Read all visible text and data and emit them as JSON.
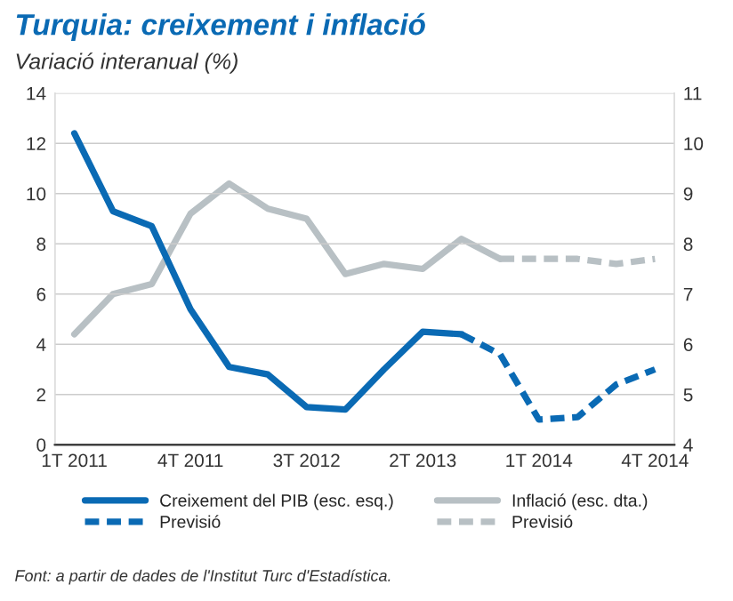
{
  "chart_data": {
    "type": "line",
    "title": "Turquia: creixement i inflació",
    "subtitle": "Variació interanual (%)",
    "categories": [
      "1T 2011",
      null,
      null,
      "4T 2011",
      null,
      null,
      "3T 2012",
      null,
      null,
      "2T 2013",
      null,
      null,
      "1T 2014",
      null,
      null,
      "4T 2014"
    ],
    "series": [
      {
        "name": "Creixement del PIB (esc. esq.)",
        "color": "#0a6ab4",
        "line_style": "solid",
        "values": [
          12.4,
          9.3,
          8.7,
          5.4,
          3.1,
          2.8,
          1.5,
          1.4,
          3.0,
          4.5,
          4.4,
          null,
          null,
          null,
          null,
          null
        ]
      },
      {
        "name": "Inflació (esc. dta.)",
        "color": "#b8c0c4",
        "line_style": "solid",
        "axis": "y2",
        "values": [
          6.2,
          7.0,
          7.2,
          8.6,
          9.2,
          8.7,
          8.5,
          7.4,
          7.6,
          7.5,
          8.1,
          7.7,
          null,
          null,
          null,
          null
        ]
      },
      {
        "name": "Previsió",
        "color": "#0a6ab4",
        "line_style": "dashed",
        "values": [
          null,
          null,
          null,
          null,
          null,
          null,
          null,
          null,
          null,
          null,
          4.4,
          3.6,
          1.0,
          1.1,
          2.4,
          3.0
        ]
      },
      {
        "name": "Previsió",
        "color": "#b8c0c4",
        "line_style": "dashed",
        "axis": "y2",
        "values": [
          null,
          null,
          null,
          null,
          null,
          null,
          null,
          null,
          null,
          null,
          null,
          7.7,
          7.7,
          7.7,
          7.6,
          7.7
        ]
      }
    ],
    "ylim": [
      0,
      14
    ],
    "yticks": [
      0,
      2,
      4,
      6,
      8,
      10,
      12,
      14
    ],
    "y2lim": [
      4,
      11
    ],
    "y2ticks": [
      4,
      5,
      6,
      7,
      8,
      9,
      10,
      11
    ],
    "grid": "y",
    "legend": "bottom",
    "marker": "none",
    "annotations": [
      "Font: a partir de dades de l'Institut Turc d'Estadística."
    ]
  }
}
